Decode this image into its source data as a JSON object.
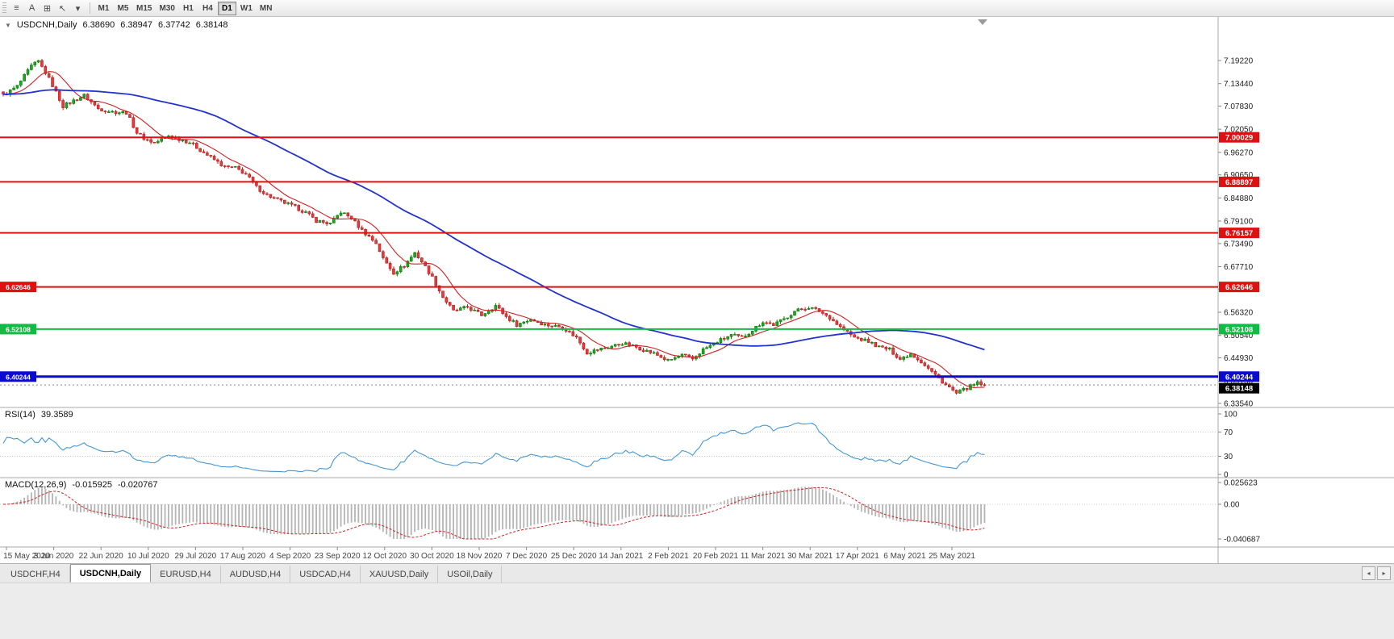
{
  "toolbar": {
    "icons": [
      {
        "name": "menu-icon",
        "glyph": "≡"
      },
      {
        "name": "text-annotation-icon",
        "glyph": "A"
      },
      {
        "name": "chart-window-icon",
        "glyph": "⊞"
      },
      {
        "name": "cursor-tool-icon",
        "glyph": "↖"
      },
      {
        "name": "dropdown-caret-icon",
        "glyph": "▾"
      }
    ],
    "timeframes": [
      {
        "label": "M1",
        "active": false
      },
      {
        "label": "M5",
        "active": false
      },
      {
        "label": "M15",
        "active": false
      },
      {
        "label": "M30",
        "active": false
      },
      {
        "label": "H1",
        "active": false
      },
      {
        "label": "H4",
        "active": false
      },
      {
        "label": "D1",
        "active": true
      },
      {
        "label": "W1",
        "active": false
      },
      {
        "label": "MN",
        "active": false
      }
    ]
  },
  "chart": {
    "collapse_glyph": "▼",
    "symbol_period": "USDCNH,Daily",
    "open": "6.38690",
    "high": "6.38947",
    "low": "6.37742",
    "close": "6.38148"
  },
  "rsi": {
    "label": "RSI(14)",
    "value": "39.3589",
    "axis_labels": [
      100,
      70,
      30,
      0
    ]
  },
  "macd": {
    "label": "MACD(12,26,9)",
    "value_main": "-0.015925",
    "value_signal": "-0.020767",
    "axis_labels": [
      "0.025623",
      "0.00",
      "-0.040687"
    ]
  },
  "tabs": [
    {
      "label": "USDCHF,H4",
      "active": false
    },
    {
      "label": "USDCNH,Daily",
      "active": true
    },
    {
      "label": "EURUSD,H4",
      "active": false
    },
    {
      "label": "AUDUSD,H4",
      "active": false
    },
    {
      "label": "USDCAD,H4",
      "active": false
    },
    {
      "label": "XAUUSD,Daily",
      "active": false
    },
    {
      "label": "USOil,Daily",
      "active": false
    }
  ],
  "tab_scroll": {
    "left": "◂",
    "right": "▸"
  },
  "colors": {
    "bull": "#1fa51f",
    "bull_border": "#0c7a0c",
    "bear": "#e23b3b",
    "bear_border": "#b32020",
    "ma_fast": "#cc2222",
    "ma_slow": "#2233cc",
    "rsi_line": "#4596d2",
    "macd_hist": "#b4b4b4",
    "macd_signal": "#cc2222",
    "line_red": "#dd1111",
    "line_green": "#11bb44",
    "line_blue": "#0a0ad0",
    "current_badge": "#000000",
    "axis_text": "#222222"
  },
  "chart_data": {
    "type": "candlestick",
    "symbol": "USDCNH",
    "timeframe": "Daily",
    "num_candles": 280,
    "last_price": 6.38148,
    "y_range": [
      6.3294,
      7.293
    ],
    "price_axis_ticks": [
      7.1922,
      7.1344,
      7.0783,
      7.0205,
      6.9627,
      6.9065,
      6.8488,
      6.791,
      6.7349,
      6.6771,
      6.6212,
      6.5632,
      6.5054,
      6.4493,
      6.3915,
      6.3354
    ],
    "date_labels": [
      "15 May 2020",
      "3 Jun 2020",
      "22 Jun 2020",
      "10 Jul 2020",
      "29 Jul 2020",
      "17 Aug 2020",
      "4 Sep 2020",
      "23 Sep 2020",
      "12 Oct 2020",
      "30 Oct 2020",
      "18 Nov 2020",
      "7 Dec 2020",
      "25 Dec 2020",
      "14 Jan 2021",
      "2 Feb 2021",
      "20 Feb 2021",
      "11 Mar 2021",
      "30 Mar 2021",
      "17 Apr 2021",
      "6 May 2021",
      "25 May 2021"
    ],
    "horizontal_lines": [
      {
        "price": 7.00029,
        "color_key": "line_red",
        "width": 2,
        "left_badge": false
      },
      {
        "price": 6.88897,
        "color_key": "line_red",
        "width": 2,
        "left_badge": false
      },
      {
        "price": 6.76157,
        "color_key": "line_red",
        "width": 2,
        "left_badge": false
      },
      {
        "price": 6.62646,
        "color_key": "line_red",
        "width": 2,
        "left_badge": true
      },
      {
        "price": 6.52108,
        "color_key": "line_green",
        "width": 2,
        "left_badge": true
      },
      {
        "price": 6.40244,
        "color_key": "line_blue",
        "width": 3,
        "left_badge": true
      }
    ],
    "moving_averages": [
      {
        "period": 10,
        "color_key": "ma_fast",
        "width": 1.1
      },
      {
        "period": 56,
        "color_key": "ma_slow",
        "width": 1.8
      }
    ],
    "price_path_waypoints": [
      [
        0,
        7.105
      ],
      [
        4,
        7.128
      ],
      [
        8,
        7.178
      ],
      [
        10,
        7.19
      ],
      [
        12,
        7.162
      ],
      [
        14,
        7.13
      ],
      [
        17,
        7.078
      ],
      [
        20,
        7.092
      ],
      [
        23,
        7.105
      ],
      [
        27,
        7.072
      ],
      [
        31,
        7.064
      ],
      [
        35,
        7.062
      ],
      [
        38,
        7.012
      ],
      [
        40,
        6.998
      ],
      [
        43,
        6.986
      ],
      [
        47,
        7.004
      ],
      [
        50,
        6.996
      ],
      [
        53,
        6.988
      ],
      [
        57,
        6.962
      ],
      [
        60,
        6.944
      ],
      [
        63,
        6.926
      ],
      [
        66,
        6.924
      ],
      [
        69,
        6.908
      ],
      [
        72,
        6.876
      ],
      [
        75,
        6.856
      ],
      [
        79,
        6.84
      ],
      [
        83,
        6.826
      ],
      [
        86,
        6.812
      ],
      [
        89,
        6.792
      ],
      [
        93,
        6.784
      ],
      [
        96,
        6.814
      ],
      [
        99,
        6.798
      ],
      [
        102,
        6.768
      ],
      [
        106,
        6.736
      ],
      [
        108,
        6.697
      ],
      [
        111,
        6.662
      ],
      [
        114,
        6.68
      ],
      [
        117,
        6.712
      ],
      [
        119,
        6.69
      ],
      [
        122,
        6.65
      ],
      [
        125,
        6.601
      ],
      [
        128,
        6.566
      ],
      [
        132,
        6.576
      ],
      [
        136,
        6.556
      ],
      [
        140,
        6.58
      ],
      [
        143,
        6.552
      ],
      [
        146,
        6.532
      ],
      [
        150,
        6.546
      ],
      [
        154,
        6.532
      ],
      [
        159,
        6.526
      ],
      [
        163,
        6.5
      ],
      [
        166,
        6.462
      ],
      [
        169,
        6.47
      ],
      [
        172,
        6.476
      ],
      [
        176,
        6.486
      ],
      [
        180,
        6.476
      ],
      [
        185,
        6.46
      ],
      [
        189,
        6.442
      ],
      [
        193,
        6.456
      ],
      [
        196,
        6.446
      ],
      [
        199,
        6.47
      ],
      [
        203,
        6.49
      ],
      [
        207,
        6.506
      ],
      [
        210,
        6.5
      ],
      [
        212,
        6.512
      ],
      [
        216,
        6.54
      ],
      [
        219,
        6.532
      ],
      [
        222,
        6.546
      ],
      [
        225,
        6.566
      ],
      [
        229,
        6.576
      ],
      [
        232,
        6.566
      ],
      [
        235,
        6.55
      ],
      [
        238,
        6.526
      ],
      [
        242,
        6.5
      ],
      [
        246,
        6.49
      ],
      [
        249,
        6.476
      ],
      [
        252,
        6.47
      ],
      [
        255,
        6.446
      ],
      [
        258,
        6.46
      ],
      [
        261,
        6.44
      ],
      [
        265,
        6.406
      ],
      [
        268,
        6.382
      ],
      [
        271,
        6.36
      ],
      [
        274,
        6.374
      ],
      [
        277,
        6.386
      ],
      [
        279,
        6.3815
      ]
    ],
    "rsi_panel": {
      "range": [
        0,
        100
      ],
      "levels": [
        70,
        30
      ]
    },
    "macd_panel": {
      "range": [
        -0.040687,
        0.025623
      ]
    }
  }
}
